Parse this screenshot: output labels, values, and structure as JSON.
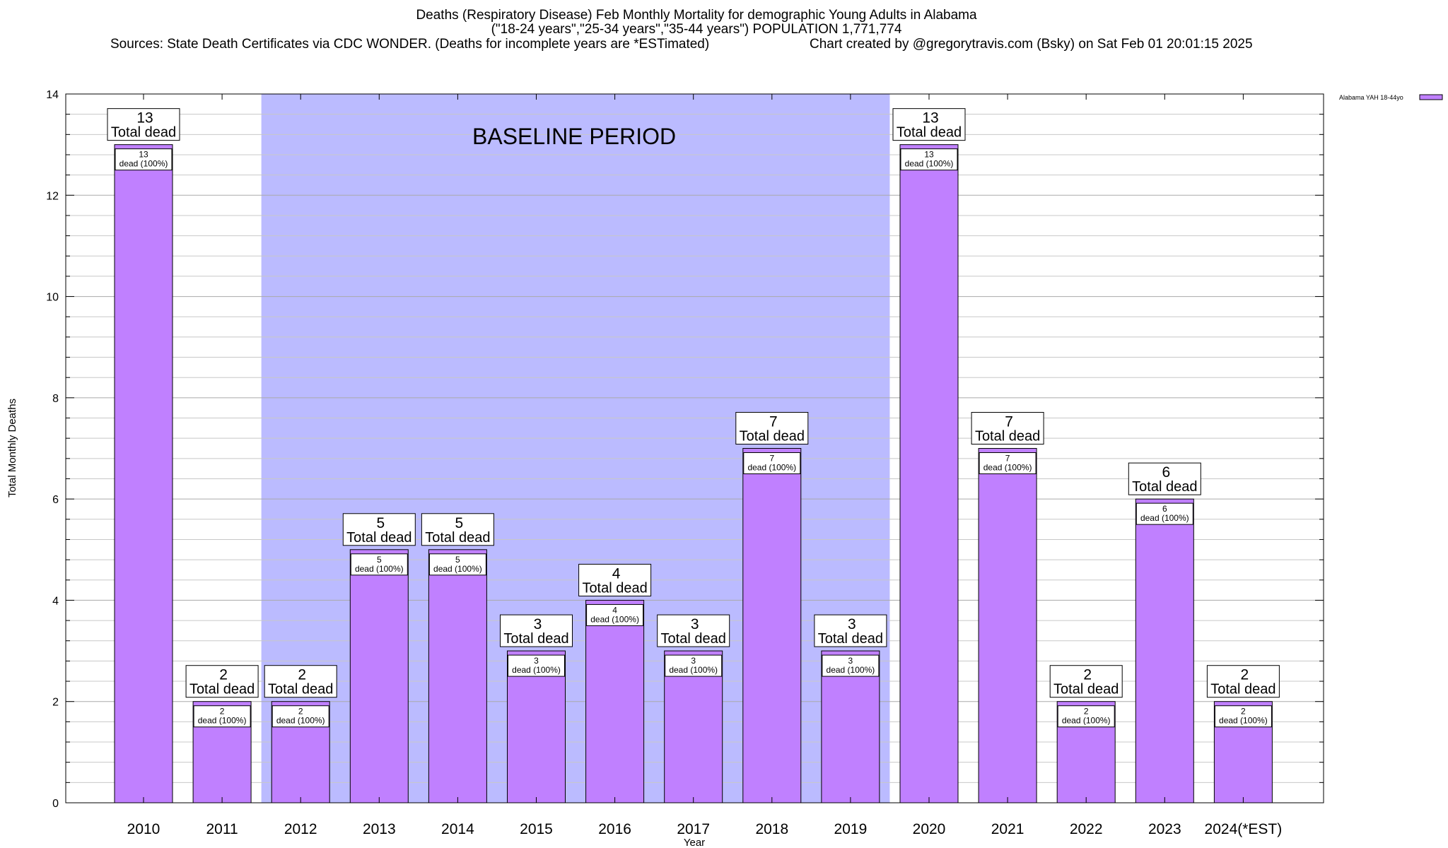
{
  "header": {
    "title_line1": "Deaths (Respiratory Disease) Feb Monthly Mortality for demographic Young Adults in Alabama",
    "title_line2": "(\"18-24 years\",\"25-34 years\",\"35-44 years\") POPULATION 1,771,774",
    "sources": "Sources: State Death Certificates via CDC WONDER. (Deaths for incomplete years are *ESTimated)",
    "credit": "Chart created by @gregorytravis.com (Bsky) on Sat Feb 01 20:01:15 2025"
  },
  "colors": {
    "bar_fill": "#c080ff",
    "bar_stroke": "#000000",
    "baseline_shade": "#bbbbff",
    "grid": "#c8c8c8"
  },
  "chart_data": {
    "type": "bar",
    "xlabel": "Year",
    "ylabel": "Total Monthly Deaths",
    "ylim": [
      0,
      14
    ],
    "yticks": [
      0,
      2,
      4,
      6,
      8,
      10,
      12,
      14
    ],
    "grid": true,
    "legend": {
      "position": "top-right",
      "label": "Alabama YAH 18-44yo"
    },
    "categories": [
      "2010",
      "2011",
      "2012",
      "2013",
      "2014",
      "2015",
      "2016",
      "2017",
      "2018",
      "2019",
      "2020",
      "2021",
      "2022",
      "2023",
      "2024(*EST)"
    ],
    "series": [
      {
        "name": "Alabama YAH 18-44yo",
        "values": [
          13,
          2,
          2,
          5,
          5,
          3,
          4,
          3,
          7,
          3,
          13,
          7,
          2,
          6,
          2
        ]
      }
    ],
    "total_label_suffix": "Total dead",
    "inner_label_suffix": "dead (100%)",
    "annotations": [
      {
        "text": "BASELINE PERIOD",
        "x_start": "2012",
        "x_end": "2019"
      }
    ]
  }
}
